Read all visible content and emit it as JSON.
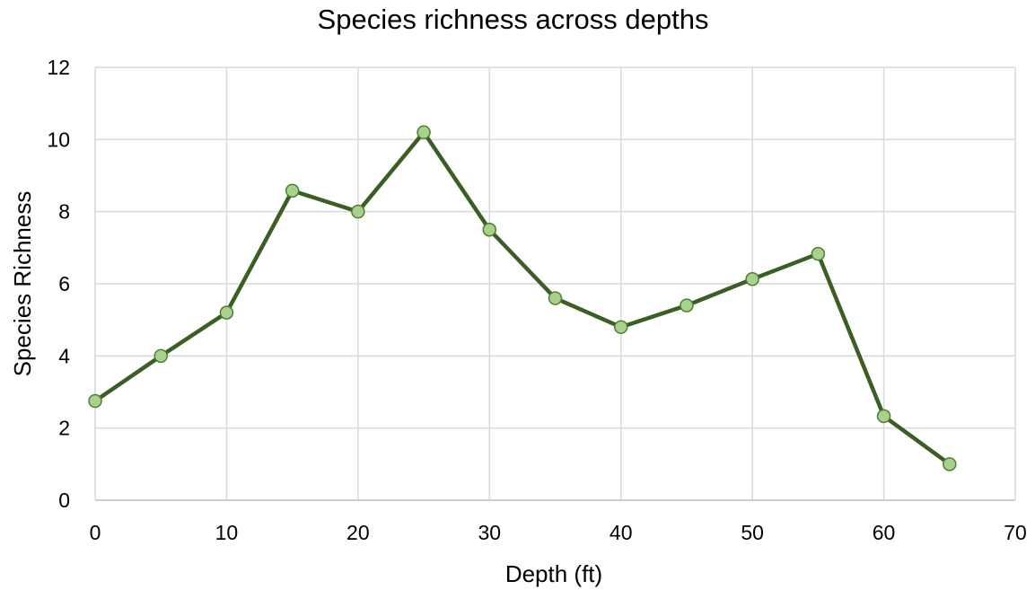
{
  "chart_data": {
    "type": "line",
    "title": "Species richness across depths",
    "xlabel": "Depth (ft)",
    "ylabel": "Species Richness",
    "xlim": [
      0,
      70
    ],
    "ylim": [
      0,
      12
    ],
    "x_ticks": [
      0,
      10,
      20,
      30,
      40,
      50,
      60,
      70
    ],
    "y_ticks": [
      0,
      2,
      4,
      6,
      8,
      10,
      12
    ],
    "grid": true,
    "legend": "none",
    "series": [
      {
        "x": [
          0,
          5,
          10,
          15,
          20,
          25,
          30,
          35,
          40,
          45,
          50,
          55,
          60,
          65
        ],
        "y": [
          2.75,
          4.0,
          5.2,
          8.58,
          8.0,
          10.2,
          7.5,
          5.6,
          4.8,
          5.4,
          6.13,
          6.83,
          2.33,
          1.0
        ],
        "line_color": "#3b5e23",
        "marker_fill": "#a9d18e",
        "marker_edge": "#507e32"
      }
    ]
  }
}
